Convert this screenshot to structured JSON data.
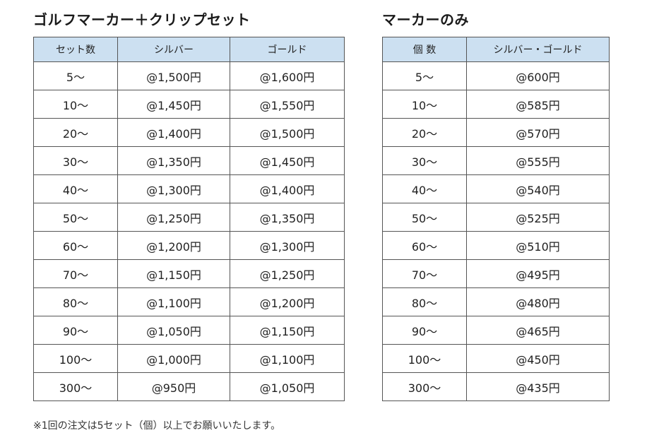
{
  "set_table": {
    "title": "ゴルフマーカー＋クリップセット",
    "headers": [
      "セット数",
      "シルバー",
      "ゴールド"
    ],
    "rows": [
      [
        "5〜",
        "@1,500円",
        "@1,600円"
      ],
      [
        "10〜",
        "@1,450円",
        "@1,550円"
      ],
      [
        "20〜",
        "@1,400円",
        "@1,500円"
      ],
      [
        "30〜",
        "@1,350円",
        "@1,450円"
      ],
      [
        "40〜",
        "@1,300円",
        "@1,400円"
      ],
      [
        "50〜",
        "@1,250円",
        "@1,350円"
      ],
      [
        "60〜",
        "@1,200円",
        "@1,300円"
      ],
      [
        "70〜",
        "@1,150円",
        "@1,250円"
      ],
      [
        "80〜",
        "@1,100円",
        "@1,200円"
      ],
      [
        "90〜",
        "@1,050円",
        "@1,150円"
      ],
      [
        "100〜",
        "@1,000円",
        "@1,100円"
      ],
      [
        "300〜",
        "@950円",
        "@1,050円"
      ]
    ]
  },
  "marker_table": {
    "title": "マーカーのみ",
    "headers": [
      "個 数",
      "シルバー・ゴールド"
    ],
    "rows": [
      [
        "5〜",
        "@600円"
      ],
      [
        "10〜",
        "@585円"
      ],
      [
        "20〜",
        "@570円"
      ],
      [
        "30〜",
        "@555円"
      ],
      [
        "40〜",
        "@540円"
      ],
      [
        "50〜",
        "@525円"
      ],
      [
        "60〜",
        "@510円"
      ],
      [
        "70〜",
        "@495円"
      ],
      [
        "80〜",
        "@480円"
      ],
      [
        "90〜",
        "@465円"
      ],
      [
        "100〜",
        "@450円"
      ],
      [
        "300〜",
        "@435円"
      ]
    ]
  },
  "note": "※1回の注文は5セット（個）以上でお願いいたします。",
  "colors": {
    "header_bg": "#cce0f1",
    "border": "#555555"
  }
}
